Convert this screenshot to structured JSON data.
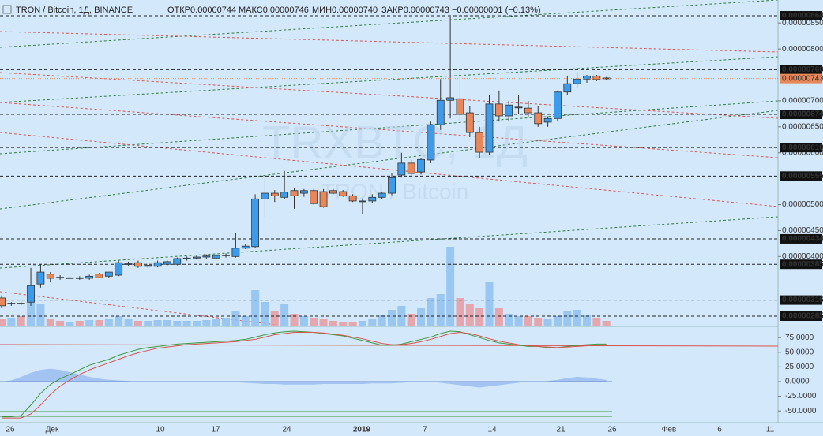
{
  "chart_data": {
    "type": "candlestick",
    "title": "TRON / Bitcoin, 1Д, BINANCE",
    "ohlc_text": [
      "ОТКР0.00000744",
      "МАКС0.00000746",
      "МИН0.00000740",
      "ЗАКР0.00000743",
      "−0.00000001 (−0.13%)"
    ],
    "watermark": "TRXBTC, 1Д",
    "watermark_sub": "TRON / Bitcoin",
    "open": [
      3.2e-06,
      3.09e-06,
      3.1e-06,
      3.12e-06,
      3.47e-06,
      3.66e-06,
      3.6e-06,
      3.59e-06,
      3.59e-06,
      3.58e-06,
      3.66e-06,
      3.62e-06,
      3.64e-06,
      3.85e-06,
      3.88e-06,
      3.81e-06,
      3.81e-06,
      3.85e-06,
      3.85e-06,
      3.96e-06,
      3.97e-06,
      3.99e-06,
      3.97e-06,
      4.02e-06,
      4e-06,
      4.16e-06,
      4.19e-06,
      5.11e-06,
      5.22e-06,
      5.14e-06,
      5.27e-06,
      5.22e-06,
      5.27e-06,
      5.25e-06,
      5.27e-06,
      5.25e-06,
      5.17e-06,
      5.07e-06,
      5.07e-06,
      5.14e-06,
      5.22e-06,
      5.57e-06,
      5.8e-06,
      5.63e-06,
      5.86e-06,
      6.54e-06,
      7.01e-06,
      7.04e-06,
      6.77e-06,
      6.39e-06,
      6.01e-06,
      6.94e-06,
      6.71e-06,
      6.88e-06,
      6.86e-06,
      6.77e-06,
      6.59e-06,
      6.66e-06,
      7.17e-06,
      7.33e-06,
      7.42e-06,
      7.48e-06,
      7.44e-06
    ],
    "high": [
      3.25e-06,
      3.12e-06,
      3.13e-06,
      3.78e-06,
      3.85e-06,
      3.7e-06,
      3.64e-06,
      3.62e-06,
      3.62e-06,
      3.65e-06,
      3.68e-06,
      3.7e-06,
      3.92e-06,
      3.9e-06,
      3.92e-06,
      3.86e-06,
      3.92e-06,
      3.92e-06,
      3.98e-06,
      4e-06,
      4.02e-06,
      4.04e-06,
      4.05e-06,
      4.06e-06,
      4.46e-06,
      4.24e-06,
      5.2e-06,
      5.57e-06,
      5.28e-06,
      5.65e-06,
      5.32e-06,
      5.3e-06,
      5.3e-06,
      5.3e-06,
      5.3e-06,
      5.28e-06,
      5.2e-06,
      5.12e-06,
      5.2e-06,
      5.24e-06,
      5.6e-06,
      6e-06,
      5.86e-06,
      5.9e-06,
      6.6e-06,
      7.42e-06,
      8.61e-06,
      7.58e-06,
      6.9e-06,
      6.5e-06,
      7.12e-06,
      7.2e-06,
      7e-06,
      7.12e-06,
      7e-06,
      6.9e-06,
      6.7e-06,
      7.2e-06,
      7.47e-06,
      7.55e-06,
      7.5e-06,
      7.5e-06,
      7.46e-06
    ],
    "low": [
      3e-06,
      3.05e-06,
      3.06e-06,
      3.05e-06,
      3.4e-06,
      3.5e-06,
      3.55e-06,
      3.55e-06,
      3.55e-06,
      3.55e-06,
      3.58e-06,
      3.58e-06,
      3.62e-06,
      3.82e-06,
      3.78e-06,
      3.78e-06,
      3.79e-06,
      3.83e-06,
      3.83e-06,
      3.92e-06,
      3.94e-06,
      3.96e-06,
      3.95e-06,
      3.98e-06,
      3.98e-06,
      4.14e-06,
      4.17e-06,
      4.76e-06,
      5.05e-06,
      5.1e-06,
      4.92e-06,
      5.15e-06,
      5e-06,
      4.94e-06,
      5.2e-06,
      5.15e-06,
      5.05e-06,
      4.81e-06,
      5.03e-06,
      5.1e-06,
      5.18e-06,
      5.52e-06,
      5.55e-06,
      5.58e-06,
      5.8e-06,
      6.44e-06,
      6.66e-06,
      6.6e-06,
      6.3e-06,
      5.9e-06,
      5.95e-06,
      6.6e-06,
      6.6e-06,
      6.75e-06,
      6.7e-06,
      6.5e-06,
      6.5e-06,
      6.6e-06,
      7.12e-06,
      7.25e-06,
      7.35e-06,
      7.38e-06,
      7.4e-06
    ],
    "close": [
      3.05e-06,
      3.1e-06,
      3.09e-06,
      3.44e-06,
      3.7e-06,
      3.58e-06,
      3.59e-06,
      3.59e-06,
      3.58e-06,
      3.62e-06,
      3.59e-06,
      3.7e-06,
      3.88e-06,
      3.86e-06,
      3.81e-06,
      3.83e-06,
      3.88e-06,
      3.9e-06,
      3.96e-06,
      3.97e-06,
      3.99e-06,
      4.01e-06,
      4.02e-06,
      4.03e-06,
      4.16e-06,
      4.2e-06,
      5.11e-06,
      5.22e-06,
      5.17e-06,
      5.24e-06,
      5.17e-06,
      5.27e-06,
      5.02e-06,
      4.96e-06,
      5.22e-06,
      5.17e-06,
      5.07e-06,
      5.07e-06,
      5.14e-06,
      5.22e-06,
      5.52e-06,
      5.8e-06,
      5.6e-06,
      5.87e-06,
      6.54e-06,
      7.01e-06,
      7.06e-06,
      6.74e-06,
      6.39e-06,
      6.01e-06,
      6.94e-06,
      6.71e-06,
      6.92e-06,
      6.88e-06,
      6.77e-06,
      6.56e-06,
      6.66e-06,
      7.17e-06,
      7.33e-06,
      7.42e-06,
      7.48e-06,
      7.41e-06,
      7.43e-06
    ],
    "volume": [
      8,
      10,
      12,
      30,
      28,
      8,
      6,
      5,
      6,
      7,
      7,
      8,
      12,
      8,
      6,
      6,
      7,
      7,
      6,
      6,
      6,
      7,
      8,
      10,
      18,
      12,
      45,
      30,
      18,
      28,
      15,
      12,
      10,
      8,
      6,
      5,
      5,
      6,
      8,
      14,
      20,
      25,
      15,
      22,
      35,
      40,
      100,
      35,
      28,
      22,
      55,
      22,
      15,
      12,
      12,
      10,
      8,
      12,
      18,
      20,
      14,
      10,
      6
    ],
    "ylim": [
      8.64e-06,
      2.85e-06
    ],
    "yticks": [
      {
        "value": 8.5e-06,
        "label": "0.00000850"
      },
      {
        "value": 8e-06,
        "label": "0.00000800"
      },
      {
        "value": 7e-06,
        "label": "0.00000700"
      },
      {
        "value": 6.5e-06,
        "label": "0.00000650"
      },
      {
        "value": 6e-06,
        "label": "0.00000600"
      },
      {
        "value": 5e-06,
        "label": "0.00000500"
      },
      {
        "value": 4.5e-06,
        "label": "0.00000450"
      },
      {
        "value": 4e-06,
        "label": "0.00000400"
      }
    ],
    "levels": [
      {
        "value": 8.64e-06,
        "label": "0.00000864"
      },
      {
        "value": 7.6e-06,
        "label": "0.00000760"
      },
      {
        "value": 6.74e-06,
        "label": "0.00000674"
      },
      {
        "value": 6.1e-06,
        "label": "0.00000610"
      },
      {
        "value": 5.55e-06,
        "label": "0.00000555"
      },
      {
        "value": 4.34e-06,
        "label": "0.00000434"
      },
      {
        "value": 3.85e-06,
        "label": "0.00000385"
      },
      {
        "value": 3.16e-06,
        "label": "0.00000316"
      },
      {
        "value": 2.85e-06,
        "label": "0.00000285"
      }
    ],
    "last_price": {
      "value": 7.43e-06,
      "label": "0.00000743"
    },
    "up_color": "#3d9be9",
    "down_color": "#e8885a",
    "x_labels": [
      "26",
      "Дек",
      "10",
      "17",
      "24",
      "2019",
      "7",
      "14",
      "21",
      "26",
      "Фев",
      "6",
      "11"
    ],
    "indicator": {
      "yticks": [
        {
          "value": 75,
          "label": "75.0000"
        },
        {
          "value": 50,
          "label": "50.0000"
        },
        {
          "value": 25,
          "label": "25.0000"
        },
        {
          "value": 0,
          "label": "0.0000"
        },
        {
          "value": -25,
          "label": "-25.0000"
        },
        {
          "value": -50,
          "label": "-50.0000"
        }
      ],
      "series": [
        {
          "color": "#3a9a3a",
          "values": [
            -60,
            -60,
            -58,
            -40,
            -20,
            -5,
            5,
            12,
            20,
            28,
            33,
            38,
            45,
            50,
            55,
            58,
            60,
            62,
            64,
            65,
            66,
            67,
            68,
            69,
            70,
            72,
            76,
            80,
            83,
            85,
            86,
            85,
            84,
            82,
            80,
            78,
            74,
            70,
            66,
            62,
            62,
            64,
            68,
            72,
            76,
            82,
            86,
            85,
            80,
            75,
            70,
            66,
            64,
            62,
            60,
            60,
            58,
            58,
            60,
            62,
            63,
            64,
            64
          ]
        },
        {
          "color": "#d9534f",
          "values": [
            -62,
            -62,
            -62,
            -55,
            -40,
            -22,
            -8,
            3,
            12,
            20,
            26,
            32,
            38,
            44,
            49,
            53,
            57,
            59,
            61,
            63,
            64,
            65,
            66,
            67,
            68,
            70,
            72,
            76,
            80,
            82,
            84,
            84,
            84,
            83,
            81,
            79,
            76,
            73,
            69,
            65,
            63,
            63,
            65,
            68,
            72,
            77,
            82,
            84,
            82,
            78,
            73,
            69,
            66,
            63,
            61,
            60,
            59,
            58,
            59,
            60,
            61,
            62,
            63
          ]
        }
      ],
      "area": {
        "color": "#8fb4f0",
        "values": [
          0,
          2,
          8,
          15,
          20,
          22,
          20,
          16,
          12,
          8,
          5,
          3,
          2,
          1,
          0,
          0,
          0,
          0,
          0,
          0,
          0,
          0,
          0,
          0,
          -1,
          -2,
          -3,
          -4,
          -4,
          -5,
          -5,
          -5,
          -5,
          -4,
          -4,
          -4,
          -4,
          -4,
          -3,
          -3,
          -3,
          -2,
          -1,
          0,
          0,
          -2,
          -4,
          -6,
          -8,
          -10,
          -8,
          -6,
          -4,
          -2,
          0,
          0,
          1,
          3,
          6,
          8,
          7,
          5,
          3
        ]
      }
    }
  }
}
